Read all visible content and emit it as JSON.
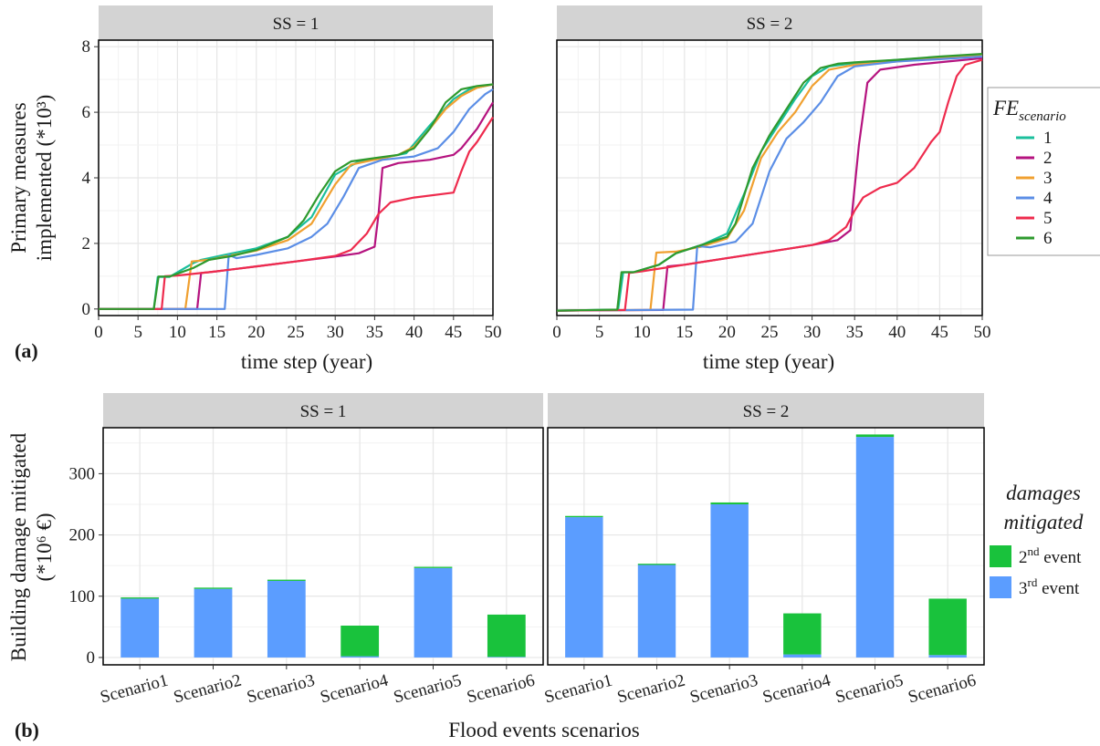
{
  "figure": {
    "panel_label_a": "(a)",
    "panel_label_b": "(b)"
  },
  "panel_a": {
    "strips": [
      "SS = 1",
      "SS = 2"
    ],
    "xlabel": "time step (year)",
    "ylabel_line1": "Primary measures",
    "ylabel_line2": "implemented (*10³)",
    "legend_title": "FE",
    "legend_title_sub": "scenario",
    "legend_items": [
      "1",
      "2",
      "3",
      "4",
      "5",
      "6"
    ]
  },
  "panel_b": {
    "strips": [
      "SS = 1",
      "SS = 2"
    ],
    "xlabel": "Flood events scenarios",
    "ylabel_line1": "Building damage mitigated",
    "ylabel_line2": "(*10⁶ €)",
    "legend_title_line1": "damages",
    "legend_title_line2": "mitigated",
    "legend_items": [
      {
        "base": "2",
        "sup": "nd",
        "rest": " event",
        "color": "#19c23c"
      },
      {
        "base": "3",
        "sup": "rd",
        "rest": " event",
        "color": "#5b9dff"
      }
    ]
  },
  "chart_data": [
    {
      "type": "line",
      "facet": "SS = 1",
      "xlim": [
        0,
        50
      ],
      "ylim": [
        -0.2,
        8.2
      ],
      "xticks": [
        0,
        5,
        10,
        15,
        20,
        25,
        30,
        35,
        40,
        45,
        50
      ],
      "yticks": [
        0,
        2,
        4,
        6,
        8
      ],
      "series": [
        {
          "name": "1",
          "color": "#1bbf9c",
          "x": [
            0,
            7,
            7.5,
            9,
            12,
            13,
            16,
            20,
            24,
            27,
            30,
            33,
            36,
            39,
            42,
            45,
            47,
            50
          ],
          "y": [
            0,
            0,
            0.98,
            0.98,
            1.4,
            1.5,
            1.65,
            1.85,
            2.2,
            2.8,
            4.1,
            4.5,
            4.6,
            4.75,
            5.6,
            6.4,
            6.7,
            6.85
          ]
        },
        {
          "name": "2",
          "color": "#b5137f",
          "x": [
            0,
            12.5,
            13,
            14,
            15,
            20,
            25,
            30,
            33,
            35,
            35.5,
            36,
            38,
            42,
            45,
            46,
            48,
            50
          ],
          "y": [
            0,
            0,
            1.1,
            1.12,
            1.15,
            1.3,
            1.45,
            1.6,
            1.7,
            1.9,
            2.9,
            4.3,
            4.45,
            4.55,
            4.7,
            4.9,
            5.5,
            6.3
          ]
        },
        {
          "name": "3",
          "color": "#f0a030",
          "x": [
            0,
            11,
            11.8,
            14,
            16,
            20,
            24,
            27,
            30,
            32,
            35,
            38,
            40,
            42,
            44,
            46,
            48,
            50
          ],
          "y": [
            0,
            0,
            1.45,
            1.5,
            1.6,
            1.78,
            2.1,
            2.6,
            3.8,
            4.4,
            4.55,
            4.7,
            4.95,
            5.5,
            6.1,
            6.5,
            6.75,
            6.85
          ]
        },
        {
          "name": "4",
          "color": "#5b8ee6",
          "x": [
            0,
            16,
            16.5,
            17.5,
            20,
            24,
            27,
            29,
            31,
            33,
            36,
            40,
            43,
            45,
            47,
            49,
            50
          ],
          "y": [
            0,
            0,
            1.65,
            1.55,
            1.65,
            1.85,
            2.2,
            2.6,
            3.4,
            4.3,
            4.55,
            4.65,
            4.9,
            5.4,
            6.1,
            6.55,
            6.7
          ]
        },
        {
          "name": "5",
          "color": "#ee2b4d",
          "x": [
            0,
            8,
            8.4,
            10,
            15,
            20,
            25,
            30,
            32,
            34,
            35.5,
            37,
            40,
            45,
            46,
            47,
            48,
            50
          ],
          "y": [
            0,
            0,
            1.0,
            1.02,
            1.15,
            1.3,
            1.45,
            1.62,
            1.8,
            2.3,
            2.9,
            3.25,
            3.4,
            3.55,
            4.2,
            4.8,
            5.1,
            5.85
          ]
        },
        {
          "name": "6",
          "color": "#2e9a2e",
          "x": [
            0,
            7,
            7.6,
            9,
            12,
            14,
            17,
            20,
            24,
            26,
            28,
            30,
            32,
            35,
            38,
            40,
            42,
            44,
            46,
            48,
            50
          ],
          "y": [
            0,
            0,
            0.99,
            0.99,
            1.25,
            1.5,
            1.62,
            1.8,
            2.2,
            2.7,
            3.5,
            4.2,
            4.5,
            4.6,
            4.7,
            4.9,
            5.5,
            6.3,
            6.7,
            6.8,
            6.85
          ]
        }
      ]
    },
    {
      "type": "line",
      "facet": "SS = 2",
      "xlim": [
        0,
        50
      ],
      "ylim": [
        -0.2,
        8.2
      ],
      "xticks": [
        0,
        5,
        10,
        15,
        20,
        25,
        30,
        35,
        40,
        45,
        50
      ],
      "yticks": [
        0,
        2,
        4,
        6,
        8
      ],
      "series": [
        {
          "name": "1",
          "color": "#1bbf9c",
          "x": [
            0,
            7.2,
            7.8,
            9,
            12,
            14,
            17,
            20,
            22,
            24,
            26,
            28,
            30,
            32,
            35,
            40,
            45,
            50
          ],
          "y": [
            -0.05,
            -0.02,
            1.12,
            1.12,
            1.35,
            1.7,
            1.95,
            2.3,
            3.5,
            4.8,
            5.6,
            6.4,
            7.1,
            7.4,
            7.5,
            7.6,
            7.68,
            7.75
          ]
        },
        {
          "name": "2",
          "color": "#b5137f",
          "x": [
            0,
            12.5,
            13,
            15,
            20,
            25,
            30,
            33,
            34.5,
            35.5,
            36.5,
            38,
            42,
            46,
            50
          ],
          "y": [
            -0.05,
            -0.03,
            1.3,
            1.35,
            1.55,
            1.75,
            1.95,
            2.1,
            2.4,
            5.0,
            6.9,
            7.3,
            7.45,
            7.55,
            7.65
          ]
        },
        {
          "name": "3",
          "color": "#f0a030",
          "x": [
            0,
            11,
            11.7,
            14,
            17,
            20,
            22,
            24,
            26,
            28,
            30,
            32,
            35,
            40,
            45,
            50
          ],
          "y": [
            -0.05,
            -0.03,
            1.72,
            1.75,
            1.9,
            2.15,
            3.0,
            4.6,
            5.4,
            6.0,
            6.8,
            7.3,
            7.45,
            7.55,
            7.65,
            7.72
          ]
        },
        {
          "name": "4",
          "color": "#5b8ee6",
          "x": [
            0,
            16,
            16.5,
            18,
            21,
            23,
            25,
            27,
            29,
            31,
            33,
            35,
            40,
            45,
            50
          ],
          "y": [
            -0.05,
            -0.02,
            1.92,
            1.88,
            2.05,
            2.6,
            4.2,
            5.2,
            5.7,
            6.3,
            7.1,
            7.4,
            7.55,
            7.62,
            7.7
          ]
        },
        {
          "name": "5",
          "color": "#ee2b4d",
          "x": [
            0,
            8,
            8.5,
            10,
            15,
            20,
            25,
            30,
            32,
            34,
            35,
            36,
            38,
            40,
            42,
            44,
            45,
            46,
            47,
            48,
            50
          ],
          "y": [
            -0.05,
            -0.03,
            1.1,
            1.15,
            1.35,
            1.55,
            1.75,
            1.95,
            2.1,
            2.5,
            3.0,
            3.4,
            3.7,
            3.85,
            4.3,
            5.1,
            5.4,
            6.3,
            7.1,
            7.45,
            7.6
          ]
        },
        {
          "name": "6",
          "color": "#2e9a2e",
          "x": [
            0,
            7.1,
            7.6,
            9,
            12,
            14,
            17,
            20,
            21,
            23,
            25,
            27,
            29,
            31,
            33,
            35,
            40,
            45,
            50
          ],
          "y": [
            -0.05,
            -0.02,
            1.12,
            1.12,
            1.35,
            1.7,
            1.95,
            2.2,
            2.6,
            4.3,
            5.3,
            6.1,
            6.9,
            7.35,
            7.48,
            7.52,
            7.6,
            7.7,
            7.78
          ]
        }
      ]
    },
    {
      "type": "bar",
      "facet": "SS = 1",
      "stacked": true,
      "categories": [
        "Scenario1",
        "Scenario2",
        "Scenario3",
        "Scenario4",
        "Scenario5",
        "Scenario6"
      ],
      "ylim": [
        -12,
        375
      ],
      "yticks": [
        0,
        100,
        200,
        300
      ],
      "series": [
        {
          "name": "3rd event",
          "color": "#5b9dff",
          "values": [
            96,
            112,
            125,
            2,
            146,
            1
          ]
        },
        {
          "name": "2nd event",
          "color": "#19c23c",
          "values": [
            2,
            2,
            2,
            50,
            2,
            69
          ]
        }
      ]
    },
    {
      "type": "bar",
      "facet": "SS = 2",
      "stacked": true,
      "categories": [
        "Scenario1",
        "Scenario2",
        "Scenario3",
        "Scenario4",
        "Scenario5",
        "Scenario6"
      ],
      "ylim": [
        -12,
        375
      ],
      "yticks": [
        0,
        100,
        200,
        300
      ],
      "series": [
        {
          "name": "3rd event",
          "color": "#5b9dff",
          "values": [
            229,
            151,
            250,
            5,
            360,
            4
          ]
        },
        {
          "name": "2nd event",
          "color": "#19c23c",
          "values": [
            2,
            2,
            3,
            67,
            4,
            92
          ]
        }
      ]
    }
  ]
}
